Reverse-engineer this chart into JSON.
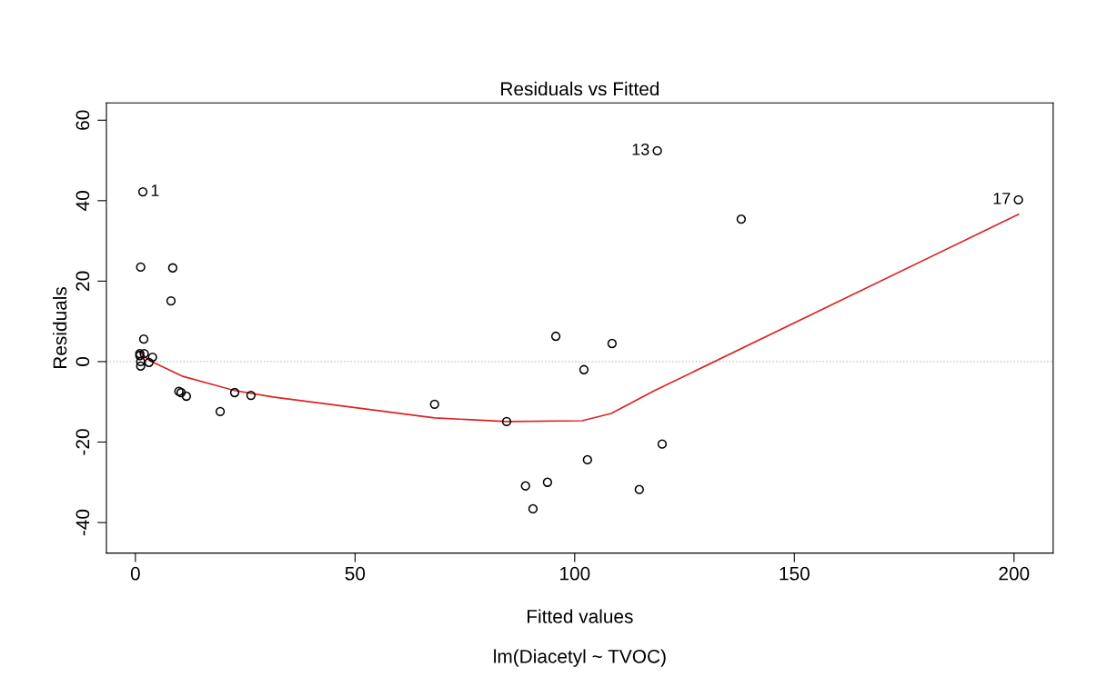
{
  "chart_data": {
    "type": "scatter",
    "title": "Residuals vs Fitted",
    "subtitle": "lm(Diacetyl ~ TVOC)",
    "xlabel": "Fitted values",
    "ylabel": "Residuals",
    "xlim": [
      -6.6,
      208.9
    ],
    "ylim": [
      -47.6,
      64.3
    ],
    "xticks": [
      0,
      50,
      100,
      150,
      200
    ],
    "yticks": [
      -40,
      -20,
      0,
      20,
      40,
      60
    ],
    "grid": false,
    "legend": false,
    "marker": "circle",
    "series": [
      {
        "color": "#000000",
        "x": [
          1.7,
          1.2,
          8.5,
          8.1,
          1.9,
          1.0,
          1.0,
          2.0,
          1.2,
          3.1,
          3.9,
          1.2,
          9.9,
          10.4,
          11.6,
          22.6,
          26.3,
          19.3,
          68.1,
          84.5,
          95.7,
          102.1,
          108.5,
          88.8,
          93.8,
          90.5,
          102.9,
          114.7,
          119.9,
          118.8,
          137.9,
          201.0
        ],
        "values": [
          42.2,
          23.5,
          23.3,
          15.1,
          5.6,
          2.0,
          1.5,
          2.0,
          -1.1,
          -0.2,
          1.1,
          0.0,
          -7.4,
          -7.7,
          -8.6,
          -7.7,
          -8.4,
          -12.4,
          -10.6,
          -14.9,
          6.3,
          -2.0,
          4.5,
          -30.9,
          -30.0,
          -36.6,
          -24.4,
          -31.8,
          -20.5,
          52.4,
          35.4,
          40.2
        ]
      },
      {
        "type": "line",
        "color": "#dd2222",
        "marker": "none",
        "x": [
          0.6,
          3.3,
          10.6,
          22.6,
          31.3,
          68.1,
          84.5,
          101.7,
          108.3,
          118.2,
          201.0
        ],
        "values": [
          2.7,
          0.2,
          -3.6,
          -7.2,
          -8.8,
          -14.0,
          -14.9,
          -14.7,
          -12.9,
          -7.2,
          36.6
        ]
      }
    ],
    "ref_lines": [
      {
        "axis": "y",
        "value": 0,
        "color": "#bbbbbb",
        "line_style": "dotted"
      }
    ],
    "annotations": [
      {
        "text": "1",
        "x": 1.7,
        "y": 42.2
      },
      {
        "text": "13",
        "x": 118.8,
        "y": 52.4
      },
      {
        "text": "17",
        "x": 201.0,
        "y": 40.2
      }
    ]
  }
}
